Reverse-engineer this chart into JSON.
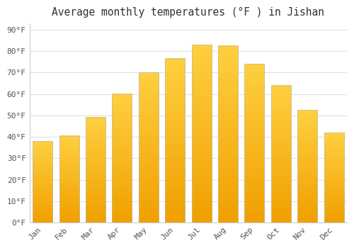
{
  "title": "Average monthly temperatures (°F ) in Jishan",
  "months": [
    "Jan",
    "Feb",
    "Mar",
    "Apr",
    "May",
    "Jun",
    "Jul",
    "Aug",
    "Sep",
    "Oct",
    "Nov",
    "Dec"
  ],
  "values": [
    38,
    40.5,
    49,
    60,
    70,
    76.5,
    83,
    82.5,
    74,
    64,
    52.5,
    42
  ],
  "bar_color_bright": "#FFD040",
  "bar_color_dark": "#F0A000",
  "bar_edge_color": "#bbbbbb",
  "background_color": "#ffffff",
  "grid_color": "#e0e0e0",
  "yticks": [
    0,
    10,
    20,
    30,
    40,
    50,
    60,
    70,
    80,
    90
  ],
  "ylim": [
    0,
    93
  ],
  "title_fontsize": 10.5,
  "tick_fontsize": 8,
  "font_family": "monospace",
  "tick_color": "#555555",
  "title_color": "#333333"
}
